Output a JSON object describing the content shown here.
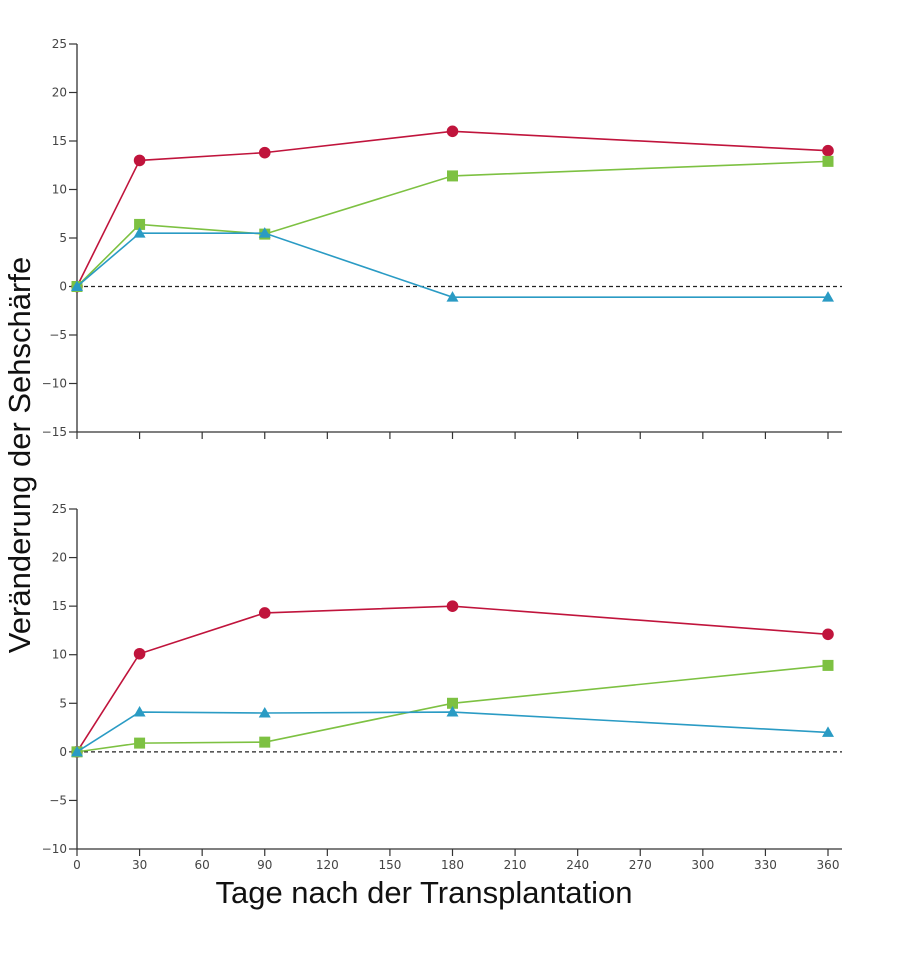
{
  "figure": {
    "ylabel": "Veränderung der Sehschärfe",
    "xlabel": "Tage nach der Transplantation"
  },
  "colors": {
    "red": "#c0143c",
    "green": "#7dc142",
    "blue": "#2a9bc4"
  },
  "chart_data": [
    {
      "type": "line",
      "panel": "top",
      "xlim": [
        0,
        360
      ],
      "ylim": [
        -15,
        25
      ],
      "yticks": [
        25,
        20,
        15,
        10,
        5,
        0,
        -5,
        -10,
        -15
      ],
      "ytick_labels": [
        "25",
        "20",
        "15",
        "10",
        "5",
        "0",
        "−5",
        "−10",
        "−15"
      ],
      "xticks": [
        0,
        30,
        60,
        90,
        120,
        150,
        180,
        210,
        240,
        270,
        300,
        330,
        360
      ],
      "xtick_labels": [],
      "reference_line": 0,
      "series": [
        {
          "color": "red",
          "marker": "circle",
          "x": [
            0,
            30,
            90,
            180,
            360
          ],
          "y": [
            0,
            13,
            13.8,
            16,
            14
          ]
        },
        {
          "color": "green",
          "marker": "square",
          "x": [
            0,
            30,
            90,
            180,
            360
          ],
          "y": [
            0,
            6.4,
            5.4,
            11.4,
            12.9
          ]
        },
        {
          "color": "blue",
          "marker": "triangle",
          "x": [
            0,
            30,
            90,
            180,
            360
          ],
          "y": [
            0,
            5.5,
            5.5,
            -1.1,
            -1.1
          ]
        }
      ]
    },
    {
      "type": "line",
      "panel": "bottom",
      "xlim": [
        0,
        360
      ],
      "ylim": [
        -10,
        25
      ],
      "yticks": [
        25,
        20,
        15,
        10,
        5,
        0,
        -5,
        -10
      ],
      "ytick_labels": [
        "25",
        "20",
        "15",
        "10",
        "5",
        "0",
        "−5",
        "−10"
      ],
      "xticks": [
        0,
        30,
        60,
        90,
        120,
        150,
        180,
        210,
        240,
        270,
        300,
        330,
        360
      ],
      "xtick_labels": [
        "0",
        "30",
        "60",
        "90",
        "120",
        "150",
        "180",
        "210",
        "240",
        "270",
        "300",
        "330",
        "360"
      ],
      "reference_line": 0,
      "series": [
        {
          "color": "red",
          "marker": "circle",
          "x": [
            0,
            30,
            90,
            180,
            360
          ],
          "y": [
            0,
            10.1,
            14.3,
            15,
            12.1
          ]
        },
        {
          "color": "green",
          "marker": "square",
          "x": [
            0,
            30,
            90,
            180,
            360
          ],
          "y": [
            0,
            0.9,
            1,
            5,
            8.9
          ]
        },
        {
          "color": "blue",
          "marker": "triangle",
          "x": [
            0,
            30,
            90,
            180,
            360
          ],
          "y": [
            0,
            4.1,
            4,
            4.1,
            2
          ]
        }
      ]
    }
  ]
}
